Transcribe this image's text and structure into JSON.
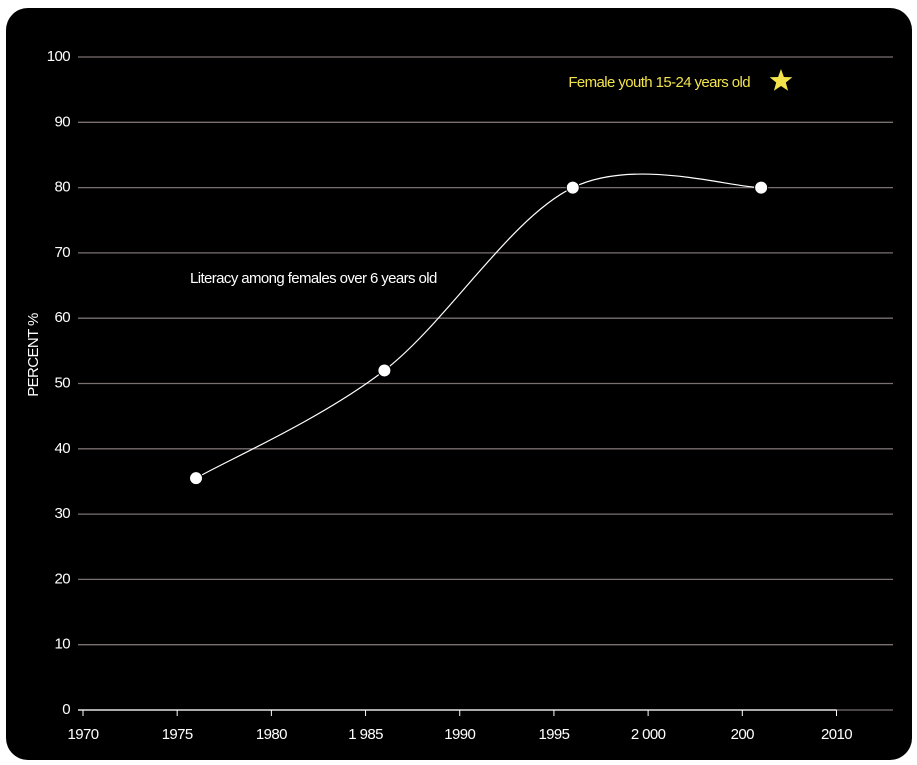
{
  "chart_data": {
    "type": "line",
    "y_label": "PERCENT %",
    "series": [
      {
        "name": "Literacy among females over 6 years old",
        "color": "#ffffff",
        "x": [
          1976,
          1986,
          1996,
          2006
        ],
        "values": [
          35.5,
          52,
          80,
          80
        ]
      }
    ],
    "annotations": [
      {
        "text": "Female youth 15-24 years old",
        "color": "#f2e34a"
      }
    ],
    "xlim": [
      1970,
      2013
    ],
    "xticks": [
      1970,
      1975,
      1980,
      {
        "value": 1985,
        "label": "1 985"
      },
      1990,
      1995,
      {
        "value": 2000,
        "label": "2 000"
      },
      {
        "value": 2005,
        "label": "200"
      },
      2010
    ],
    "ylim": [
      0,
      100
    ],
    "yticks": [
      0,
      10,
      20,
      30,
      40,
      50,
      60,
      70,
      80,
      90,
      100
    ],
    "grid": true
  }
}
